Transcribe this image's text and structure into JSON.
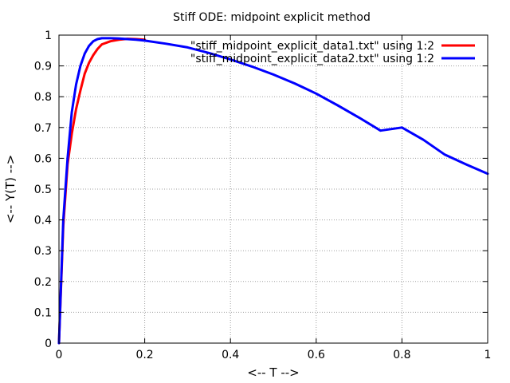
{
  "chart_data": {
    "type": "line",
    "title": "Stiff ODE: midpoint explicit method",
    "xlabel": "<-- T -->",
    "ylabel": "<-- Y(T) -->",
    "xlim": [
      0,
      1
    ],
    "ylim": [
      0,
      1
    ],
    "xticks": [
      "0",
      "0.2",
      "0.4",
      "0.6",
      "0.8",
      "1"
    ],
    "yticks": [
      "0",
      "0.1",
      "0.2",
      "0.3",
      "0.4",
      "0.5",
      "0.6",
      "0.7",
      "0.8",
      "0.9",
      "1"
    ],
    "grid": true,
    "legend_position": "top-right",
    "series": [
      {
        "name": "\"stiff_midpoint_explicit_data1.txt\" using 1:2",
        "color": "#ff0000",
        "x": [
          0,
          0.01,
          0.02,
          0.03,
          0.04,
          0.05,
          0.06,
          0.07,
          0.08,
          0.09,
          0.1,
          0.12,
          0.14,
          0.16,
          0.18,
          0.2
        ],
        "y": [
          0,
          0.38,
          0.58,
          0.68,
          0.76,
          0.82,
          0.875,
          0.91,
          0.935,
          0.955,
          0.97,
          0.98,
          0.985,
          0.988,
          0.987,
          0.985
        ]
      },
      {
        "name": "\"stiff_midpoint_explicit_data2.txt\" using 1:2",
        "color": "#0000ff",
        "x": [
          0,
          0.005,
          0.01,
          0.02,
          0.03,
          0.04,
          0.05,
          0.06,
          0.07,
          0.08,
          0.09,
          0.1,
          0.12,
          0.14,
          0.16,
          0.18,
          0.2,
          0.25,
          0.3,
          0.35,
          0.4,
          0.45,
          0.5,
          0.55,
          0.6,
          0.65,
          0.7,
          0.75,
          0.8,
          0.85,
          0.9,
          0.95,
          1.0
        ],
        "y": [
          0,
          0.2,
          0.4,
          0.6,
          0.75,
          0.84,
          0.9,
          0.94,
          0.965,
          0.98,
          0.987,
          0.99,
          0.99,
          0.989,
          0.987,
          0.985,
          0.982,
          0.972,
          0.96,
          0.942,
          0.921,
          0.898,
          0.872,
          0.843,
          0.81,
          0.772,
          0.732,
          0.69,
          0.7,
          0.66,
          0.612,
          0.58,
          0.55
        ]
      }
    ]
  }
}
